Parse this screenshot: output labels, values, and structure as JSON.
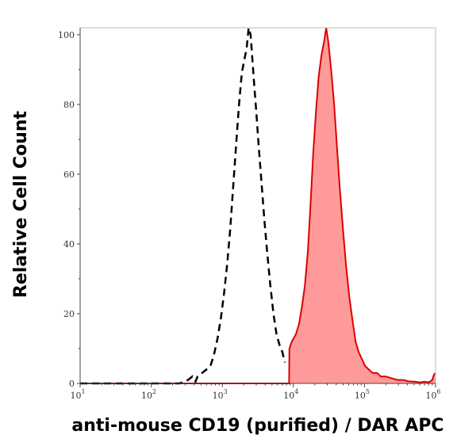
{
  "chart_data": {
    "type": "area",
    "title": "",
    "xlabel": "anti-mouse CD19 (purified) / DAR APC",
    "ylabel": "Relative Cell Count",
    "x_scale": "log",
    "xlim": [
      10,
      1000000
    ],
    "ylim": [
      0,
      102
    ],
    "x_ticks": [
      {
        "value": 10,
        "base": "10",
        "exp": "1"
      },
      {
        "value": 100,
        "base": "10",
        "exp": "2"
      },
      {
        "value": 1000,
        "base": "10",
        "exp": "3"
      },
      {
        "value": 10000,
        "base": "10",
        "exp": "4"
      },
      {
        "value": 100000,
        "base": "10",
        "exp": "5"
      },
      {
        "value": 1000000,
        "base": "10",
        "exp": "6"
      }
    ],
    "y_ticks": [
      0,
      20,
      40,
      60,
      80,
      100
    ],
    "grid": false,
    "legend": "none",
    "series": [
      {
        "style": "dashed",
        "color": "#000000",
        "fill": "none",
        "points": [
          [
            10,
            0
          ],
          [
            120,
            0
          ],
          [
            250,
            0
          ],
          [
            330,
            1
          ],
          [
            380,
            2
          ],
          [
            420,
            0.5
          ],
          [
            450,
            2
          ],
          [
            520,
            3
          ],
          [
            600,
            4
          ],
          [
            680,
            5
          ],
          [
            760,
            8
          ],
          [
            860,
            13
          ],
          [
            960,
            19
          ],
          [
            1060,
            26
          ],
          [
            1170,
            34
          ],
          [
            1290,
            44
          ],
          [
            1420,
            56
          ],
          [
            1560,
            68
          ],
          [
            1720,
            80
          ],
          [
            1880,
            89
          ],
          [
            2050,
            93
          ],
          [
            2200,
            96
          ],
          [
            2350,
            102
          ],
          [
            2500,
            100
          ],
          [
            2650,
            93
          ],
          [
            2800,
            86
          ],
          [
            3000,
            78
          ],
          [
            3250,
            68
          ],
          [
            3550,
            58
          ],
          [
            3900,
            47
          ],
          [
            4300,
            37
          ],
          [
            4750,
            28
          ],
          [
            5250,
            20
          ],
          [
            5800,
            14
          ],
          [
            6400,
            11
          ],
          [
            7000,
            9
          ],
          [
            7600,
            6
          ]
        ]
      },
      {
        "style": "filled",
        "color": "#dd0000",
        "fill": "#ff9a9a",
        "points": [
          [
            10,
            0
          ],
          [
            1000,
            0
          ],
          [
            8700,
            0
          ],
          [
            8800,
            10
          ],
          [
            9500,
            12
          ],
          [
            10800,
            14
          ],
          [
            12000,
            17
          ],
          [
            13200,
            22
          ],
          [
            14500,
            28
          ],
          [
            16000,
            38
          ],
          [
            17500,
            52
          ],
          [
            19000,
            66
          ],
          [
            20800,
            78
          ],
          [
            22700,
            88
          ],
          [
            24800,
            94
          ],
          [
            27000,
            98
          ],
          [
            29000,
            102
          ],
          [
            31000,
            98
          ],
          [
            34000,
            90
          ],
          [
            37500,
            80
          ],
          [
            41000,
            68
          ],
          [
            45000,
            56
          ],
          [
            50000,
            44
          ],
          [
            55000,
            34
          ],
          [
            61000,
            25
          ],
          [
            68000,
            18
          ],
          [
            75000,
            12
          ],
          [
            83000,
            9
          ],
          [
            92000,
            7
          ],
          [
            102000,
            5
          ],
          [
            115000,
            4
          ],
          [
            130000,
            3
          ],
          [
            150000,
            3
          ],
          [
            170000,
            2
          ],
          [
            200000,
            2
          ],
          [
            240000,
            1.5
          ],
          [
            290000,
            1
          ],
          [
            350000,
            1
          ],
          [
            420000,
            0.6
          ],
          [
            500000,
            0.5
          ],
          [
            600000,
            0.3
          ],
          [
            700000,
            0.5
          ],
          [
            800000,
            0.3
          ],
          [
            900000,
            1
          ],
          [
            950000,
            2.5
          ],
          [
            1000000,
            3
          ]
        ]
      }
    ]
  }
}
